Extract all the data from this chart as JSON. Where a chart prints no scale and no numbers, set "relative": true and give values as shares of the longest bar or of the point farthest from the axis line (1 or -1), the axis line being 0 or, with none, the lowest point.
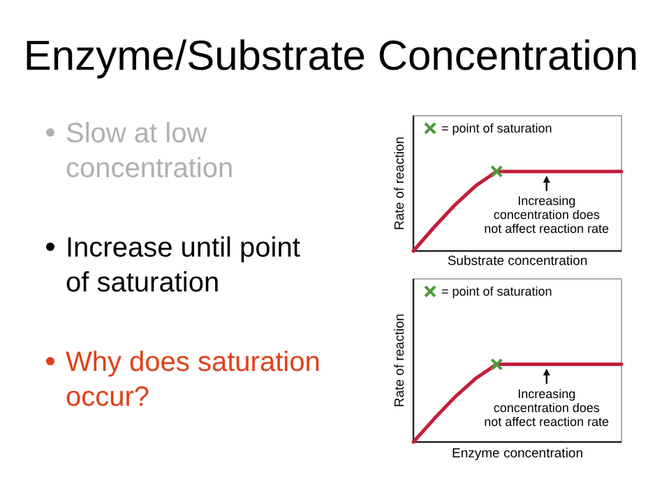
{
  "chart_data": [
    {
      "type": "other",
      "title": "Enzyme/Substrate Concentration",
      "annotations": [
        "Slow at low\nconcentration",
        "Increase until point\nof saturation",
        "Why does saturation\noccur?"
      ],
      "colors": [
        "#b0b0b0",
        "#000000",
        "#e0401a"
      ]
    },
    {
      "type": "line",
      "relative": true,
      "xlabel": "Substrate concentration",
      "ylabel": "Rate of reaction",
      "categories": [
        null,
        null,
        null,
        null,
        null,
        null,
        null,
        null,
        null,
        null,
        null
      ],
      "annotations": [
        "= point of saturation",
        "Increasing\nconcentration does\nnot affect reaction rate"
      ],
      "series": [
        {
          "color": "#c41e3a",
          "values": [
            0,
            0.3,
            0.58,
            0.82,
            1,
            1,
            1,
            1,
            1,
            1,
            1
          ]
        }
      ]
    },
    {
      "type": "line",
      "relative": true,
      "xlabel": "Enzyme  concentration",
      "ylabel": "Rate of reaction",
      "categories": [
        null,
        null,
        null,
        null,
        null,
        null,
        null,
        null,
        null,
        null,
        null
      ],
      "annotations": [
        "= point of saturation",
        "Increasing\nconcentration does\nnot affect reaction rate"
      ],
      "series": [
        {
          "color": "#c41e3a",
          "values": [
            0,
            0.3,
            0.58,
            0.82,
            1,
            1,
            1,
            1,
            1,
            1,
            1
          ]
        }
      ]
    }
  ]
}
